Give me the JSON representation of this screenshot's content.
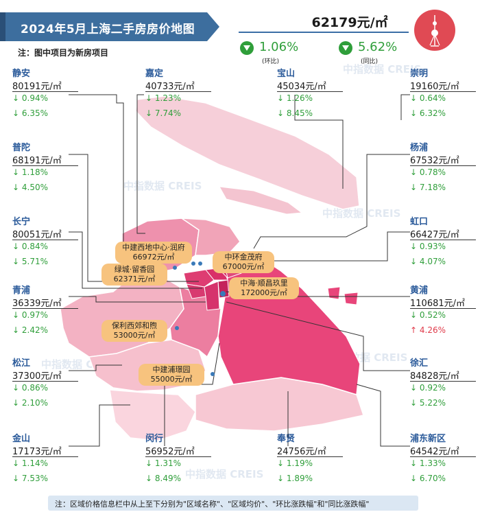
{
  "title": "2024年5月上海二手房房价地图",
  "note": "注：图中项目为新房项目",
  "city": {
    "price": "62179元/㎡",
    "mom": "1.06%",
    "mom_label": "(环比)",
    "yoy": "5.62%",
    "yoy_label": "(同比)"
  },
  "districts": [
    {
      "id": "jingan",
      "name": "静安",
      "price": "80191元/㎡",
      "mom": "↓ 0.94%",
      "yoy": "↓ 6.35%",
      "yoy_dir": "down"
    },
    {
      "id": "jiading",
      "name": "嘉定",
      "price": "40733元/㎡",
      "mom": "↓ 1.23%",
      "yoy": "↓ 7.74%",
      "yoy_dir": "down"
    },
    {
      "id": "baoshan",
      "name": "宝山",
      "price": "45034元/㎡",
      "mom": "↓ 1.26%",
      "yoy": "↓ 8.45%",
      "yoy_dir": "down"
    },
    {
      "id": "chongming",
      "name": "崇明",
      "price": "19160元/㎡",
      "mom": "↓ 0.64%",
      "yoy": "↓ 6.32%",
      "yoy_dir": "down"
    },
    {
      "id": "putuo",
      "name": "普陀",
      "price": "68191元/㎡",
      "mom": "↓ 1.18%",
      "yoy": "↓ 4.50%",
      "yoy_dir": "down"
    },
    {
      "id": "yangpu",
      "name": "杨浦",
      "price": "67532元/㎡",
      "mom": "↓ 0.78%",
      "yoy": "↓ 7.18%",
      "yoy_dir": "down"
    },
    {
      "id": "changning",
      "name": "长宁",
      "price": "80051元/㎡",
      "mom": "↓ 0.84%",
      "yoy": "↓ 5.71%",
      "yoy_dir": "down"
    },
    {
      "id": "hongkou",
      "name": "虹口",
      "price": "66427元/㎡",
      "mom": "↓ 0.93%",
      "yoy": "↓ 4.07%",
      "yoy_dir": "down"
    },
    {
      "id": "qingpu",
      "name": "青浦",
      "price": "36339元/㎡",
      "mom": "↓ 0.97%",
      "yoy": "↓ 2.42%",
      "yoy_dir": "down"
    },
    {
      "id": "huangpu",
      "name": "黄浦",
      "price": "110681元/㎡",
      "mom": "↓ 0.52%",
      "yoy": "↑ 4.26%",
      "yoy_dir": "up"
    },
    {
      "id": "songjiang",
      "name": "松江",
      "price": "37300元/㎡",
      "mom": "↓ 0.86%",
      "yoy": "↓ 2.10%",
      "yoy_dir": "down"
    },
    {
      "id": "xuhui",
      "name": "徐汇",
      "price": "84828元/㎡",
      "mom": "↓ 0.92%",
      "yoy": "↓ 5.22%",
      "yoy_dir": "down"
    },
    {
      "id": "jinshan",
      "name": "金山",
      "price": "17173元/㎡",
      "mom": "↓ 1.14%",
      "yoy": "↓ 7.53%",
      "yoy_dir": "down"
    },
    {
      "id": "minhang",
      "name": "闵行",
      "price": "56952元/㎡",
      "mom": "↓ 1.31%",
      "yoy": "↓ 8.49%",
      "yoy_dir": "down"
    },
    {
      "id": "fengxian",
      "name": "奉贤",
      "price": "24756元/㎡",
      "mom": "↓ 1.19%",
      "yoy": "↓ 1.89%",
      "yoy_dir": "down"
    },
    {
      "id": "pudong",
      "name": "浦东新区",
      "price": "64542元/㎡",
      "mom": "↓ 1.33%",
      "yoy": "↓ 6.70%",
      "yoy_dir": "down"
    }
  ],
  "projects": [
    {
      "name": "中建西地中心·润府",
      "price": "66972元/㎡"
    },
    {
      "name": "绿城·留香园",
      "price": "62371元/㎡"
    },
    {
      "name": "中环金茂府",
      "price": "67000元/㎡"
    },
    {
      "name": "中海·顺昌玖里",
      "price": "172000元/㎡"
    },
    {
      "name": "保利西郊和煦",
      "price": "53000元/㎡"
    },
    {
      "name": "中建浦璟园",
      "price": "55000元/㎡"
    }
  ],
  "footnote": "注：区域价格信息栏中从上至下分别为\"区域名称\"、\"区域均价\"、\"环比涨跌幅\"和\"同比涨跌幅\"",
  "watermark": "中指数据 CREIS",
  "colors": {
    "banner": "#3d6e9e",
    "down": "#2f9e3a",
    "up": "#e03a4a",
    "project": "#f7c37e"
  }
}
